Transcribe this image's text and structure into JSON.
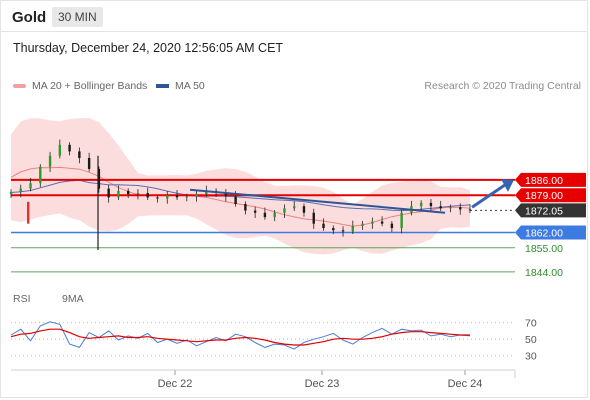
{
  "header": {
    "title": "Gold",
    "timeframe": "30 MIN"
  },
  "datetime": "Thursday, December 24, 2020 12:56:05 AM CET",
  "legend": {
    "bollinger": "MA 20 + Bollinger Bands",
    "ma50": "MA 50",
    "rsi": "RSI",
    "rsi_ma": "9MA"
  },
  "credit": "Research © 2020 Trading Central",
  "colors": {
    "resistance": "#e60000",
    "current": "#333333",
    "support_primary": "#3d7be0",
    "support_secondary": "#2e8b2e",
    "bollinger": "#f08080",
    "ma50": "#2f5597",
    "rsi": "#4a7fd6",
    "rsi_ma": "#e00000",
    "arrow": "#3565b0"
  },
  "chart_data": [
    {
      "type": "candlestick",
      "x_ticks": [
        "Dec 22",
        "Dec 23",
        "Dec 24"
      ],
      "ylim": [
        1838,
        1917
      ],
      "price_levels": [
        {
          "label": "1886.00",
          "value": 1886.0,
          "kind": "resistance"
        },
        {
          "label": "1879.00",
          "value": 1879.0,
          "kind": "resistance"
        },
        {
          "label": "1872.05",
          "value": 1872.05,
          "kind": "current"
        },
        {
          "label": "1862.00",
          "value": 1862.0,
          "kind": "pivot"
        },
        {
          "label": "1855.00",
          "value": 1855.0,
          "kind": "support"
        },
        {
          "label": "1844.00",
          "value": 1844.0,
          "kind": "support"
        }
      ],
      "close_path": [
        1880.5,
        1882,
        1884.5,
        1892,
        1897,
        1902,
        1899,
        1896,
        1891,
        1882,
        1878,
        1881,
        1879.5,
        1880,
        1878,
        1877.5,
        1879,
        1878,
        1878.5,
        1879.5,
        1881,
        1880,
        1878.5,
        1875,
        1872,
        1871,
        1869,
        1871,
        1873,
        1874,
        1871,
        1866,
        1864,
        1863,
        1862.5,
        1865,
        1866,
        1867,
        1866,
        1864,
        1871,
        1874,
        1875.5,
        1874,
        1873,
        1873.5,
        1872.5,
        1872.05
      ],
      "series": [
        {
          "name": "MA 20 + Bollinger Bands"
        },
        {
          "name": "MA 50"
        }
      ]
    },
    {
      "type": "line",
      "ylim": [
        20,
        78
      ],
      "y_ticks": [
        70,
        50,
        30
      ],
      "rsi_path": [
        55,
        62,
        48,
        66,
        71,
        68,
        44,
        40,
        58,
        52,
        60,
        49,
        54,
        51,
        57,
        46,
        50,
        45,
        49,
        42,
        47,
        52,
        48,
        56,
        53,
        46,
        40,
        44,
        43,
        38,
        46,
        50,
        53,
        57,
        49,
        44,
        52,
        58,
        63,
        56,
        62,
        60,
        61,
        54,
        56,
        53,
        55,
        54
      ],
      "rsi_ma_path": [
        53,
        56,
        57,
        60,
        62,
        62,
        58,
        53,
        51,
        52,
        53,
        54,
        52,
        52,
        53,
        51,
        50,
        49,
        48,
        47,
        48,
        49,
        49,
        51,
        52,
        51,
        49,
        46,
        44,
        43,
        43,
        45,
        47,
        50,
        51,
        50,
        50,
        51,
        53,
        56,
        58,
        59,
        59,
        58,
        57,
        56,
        55,
        55
      ],
      "series": [
        {
          "name": "RSI"
        },
        {
          "name": "9MA"
        }
      ]
    }
  ]
}
